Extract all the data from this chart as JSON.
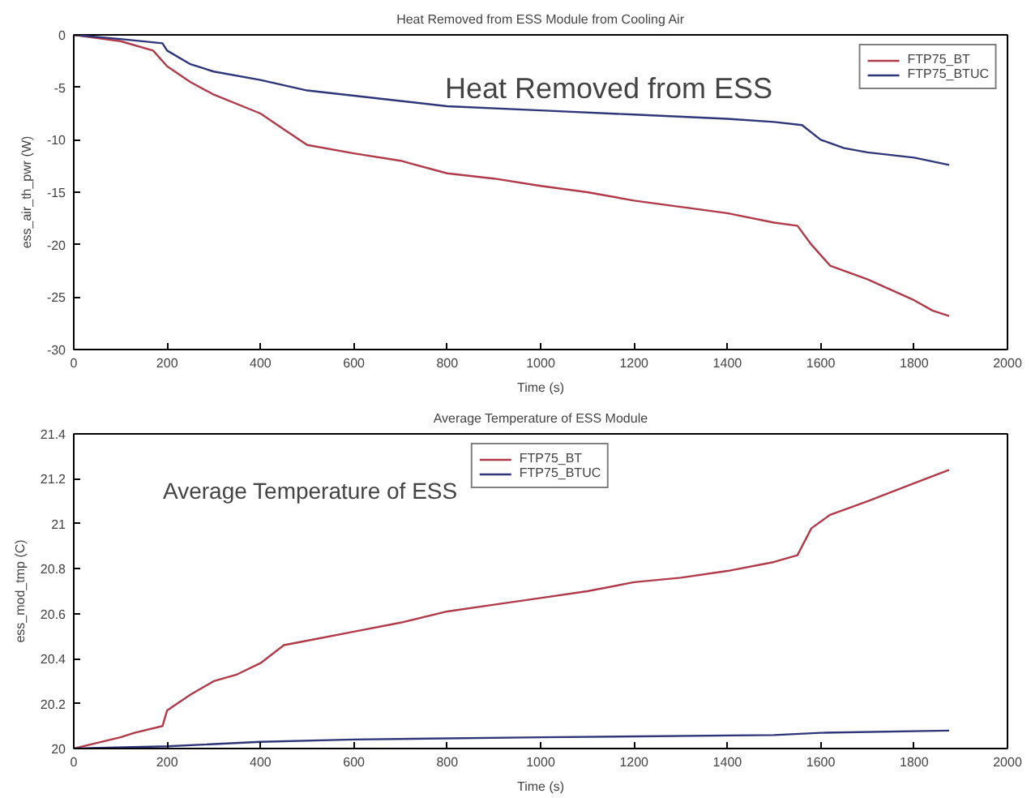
{
  "chart_data": [
    {
      "type": "line",
      "title": "Heat Removed from ESS Module from Cooling Air",
      "xlabel": "Time (s)",
      "ylabel": "ess_air_th_pwr (W)",
      "annotations": [
        "Heat Removed from ESS"
      ],
      "xlim": [
        0,
        2000
      ],
      "xticks": [
        0,
        200,
        400,
        600,
        800,
        1000,
        1200,
        1400,
        1600,
        1800,
        2000
      ],
      "ylim": [
        -30,
        0
      ],
      "yticks": [
        -30,
        -25,
        -20,
        -15,
        -10,
        -5,
        0
      ],
      "legend": "top right",
      "grid": false,
      "series": [
        {
          "name": "FTP75_BT",
          "color": "#b03a4a",
          "x": [
            0,
            100,
            170,
            200,
            250,
            300,
            400,
            450,
            500,
            600,
            700,
            800,
            900,
            1000,
            1100,
            1200,
            1300,
            1400,
            1500,
            1550,
            1580,
            1620,
            1700,
            1800,
            1840,
            1875
          ],
          "values": [
            0,
            -0.6,
            -1.5,
            -3,
            -4.5,
            -5.7,
            -7.5,
            -9,
            -10.5,
            -11.3,
            -12,
            -13.2,
            -13.7,
            -14.4,
            -15,
            -15.8,
            -16.4,
            -17,
            -17.9,
            -18.2,
            -20,
            -22,
            -23.3,
            -25.3,
            -26.3,
            -26.8
          ]
        },
        {
          "name": "FTP75_BTUC",
          "color": "#2e3578",
          "x": [
            0,
            100,
            190,
            200,
            250,
            300,
            400,
            500,
            600,
            700,
            800,
            1000,
            1200,
            1400,
            1500,
            1560,
            1600,
            1650,
            1700,
            1800,
            1875
          ],
          "values": [
            0,
            -0.4,
            -0.8,
            -1.5,
            -2.8,
            -3.5,
            -4.3,
            -5.3,
            -5.8,
            -6.3,
            -6.8,
            -7.2,
            -7.6,
            -8,
            -8.3,
            -8.6,
            -10,
            -10.8,
            -11.2,
            -11.7,
            -12.4
          ]
        }
      ]
    },
    {
      "type": "line",
      "title": "Average Temperature of ESS Module",
      "xlabel": "Time (s)",
      "ylabel": "ess_mod_tmp (C)",
      "annotations": [
        "Average Temperature of ESS"
      ],
      "xlim": [
        0,
        2000
      ],
      "xticks": [
        0,
        200,
        400,
        600,
        800,
        1000,
        1200,
        1400,
        1600,
        1800,
        2000
      ],
      "ylim": [
        20,
        21.4
      ],
      "yticks": [
        20,
        20.2,
        20.4,
        20.6,
        20.8,
        21,
        21.2,
        21.4
      ],
      "legend": "top",
      "grid": false,
      "series": [
        {
          "name": "FTP75_BT",
          "color": "#b03a4a",
          "x": [
            0,
            100,
            130,
            190,
            200,
            250,
            300,
            350,
            400,
            450,
            500,
            600,
            700,
            800,
            900,
            1000,
            1100,
            1200,
            1300,
            1400,
            1500,
            1550,
            1580,
            1620,
            1700,
            1800,
            1875
          ],
          "values": [
            20,
            20.05,
            20.07,
            20.1,
            20.17,
            20.24,
            20.3,
            20.33,
            20.38,
            20.46,
            20.48,
            20.52,
            20.56,
            20.61,
            20.64,
            20.67,
            20.7,
            20.74,
            20.76,
            20.79,
            20.83,
            20.86,
            20.98,
            21.04,
            21.1,
            21.18,
            21.24
          ]
        },
        {
          "name": "FTP75_BTUC",
          "color": "#2e3578",
          "x": [
            0,
            200,
            400,
            600,
            1000,
            1500,
            1600,
            1875
          ],
          "values": [
            20,
            20.01,
            20.03,
            20.04,
            20.05,
            20.06,
            20.07,
            20.08
          ]
        }
      ]
    }
  ]
}
